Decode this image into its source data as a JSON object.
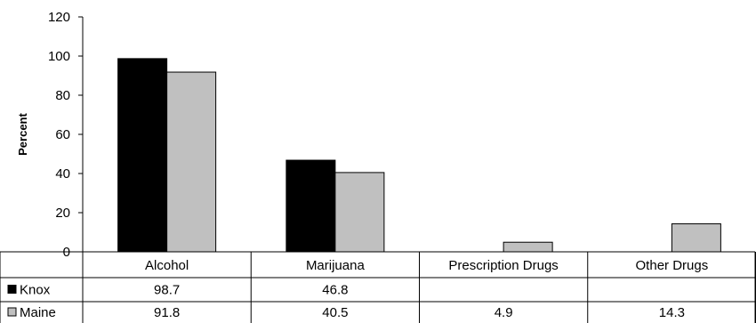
{
  "chart_data": {
    "type": "bar",
    "title": "",
    "xlabel": "",
    "ylabel": "Percent",
    "ylim": [
      0,
      120
    ],
    "yticks": [
      0,
      20,
      40,
      60,
      80,
      100,
      120
    ],
    "grid": false,
    "categories": [
      "Alcohol",
      "Marijuana",
      "Prescription Drugs",
      "Other Drugs"
    ],
    "series": [
      {
        "name": "Knox",
        "color": "#000000",
        "values": [
          98.7,
          46.8,
          null,
          null
        ],
        "labels": [
          "98.7",
          "46.8",
          "",
          ""
        ]
      },
      {
        "name": "Maine",
        "color": "#c0c0c0",
        "values": [
          91.8,
          40.5,
          4.9,
          14.3
        ],
        "labels": [
          "91.8",
          "40.5",
          "4.9",
          "14.3"
        ]
      }
    ],
    "legend": "data-table-left"
  }
}
